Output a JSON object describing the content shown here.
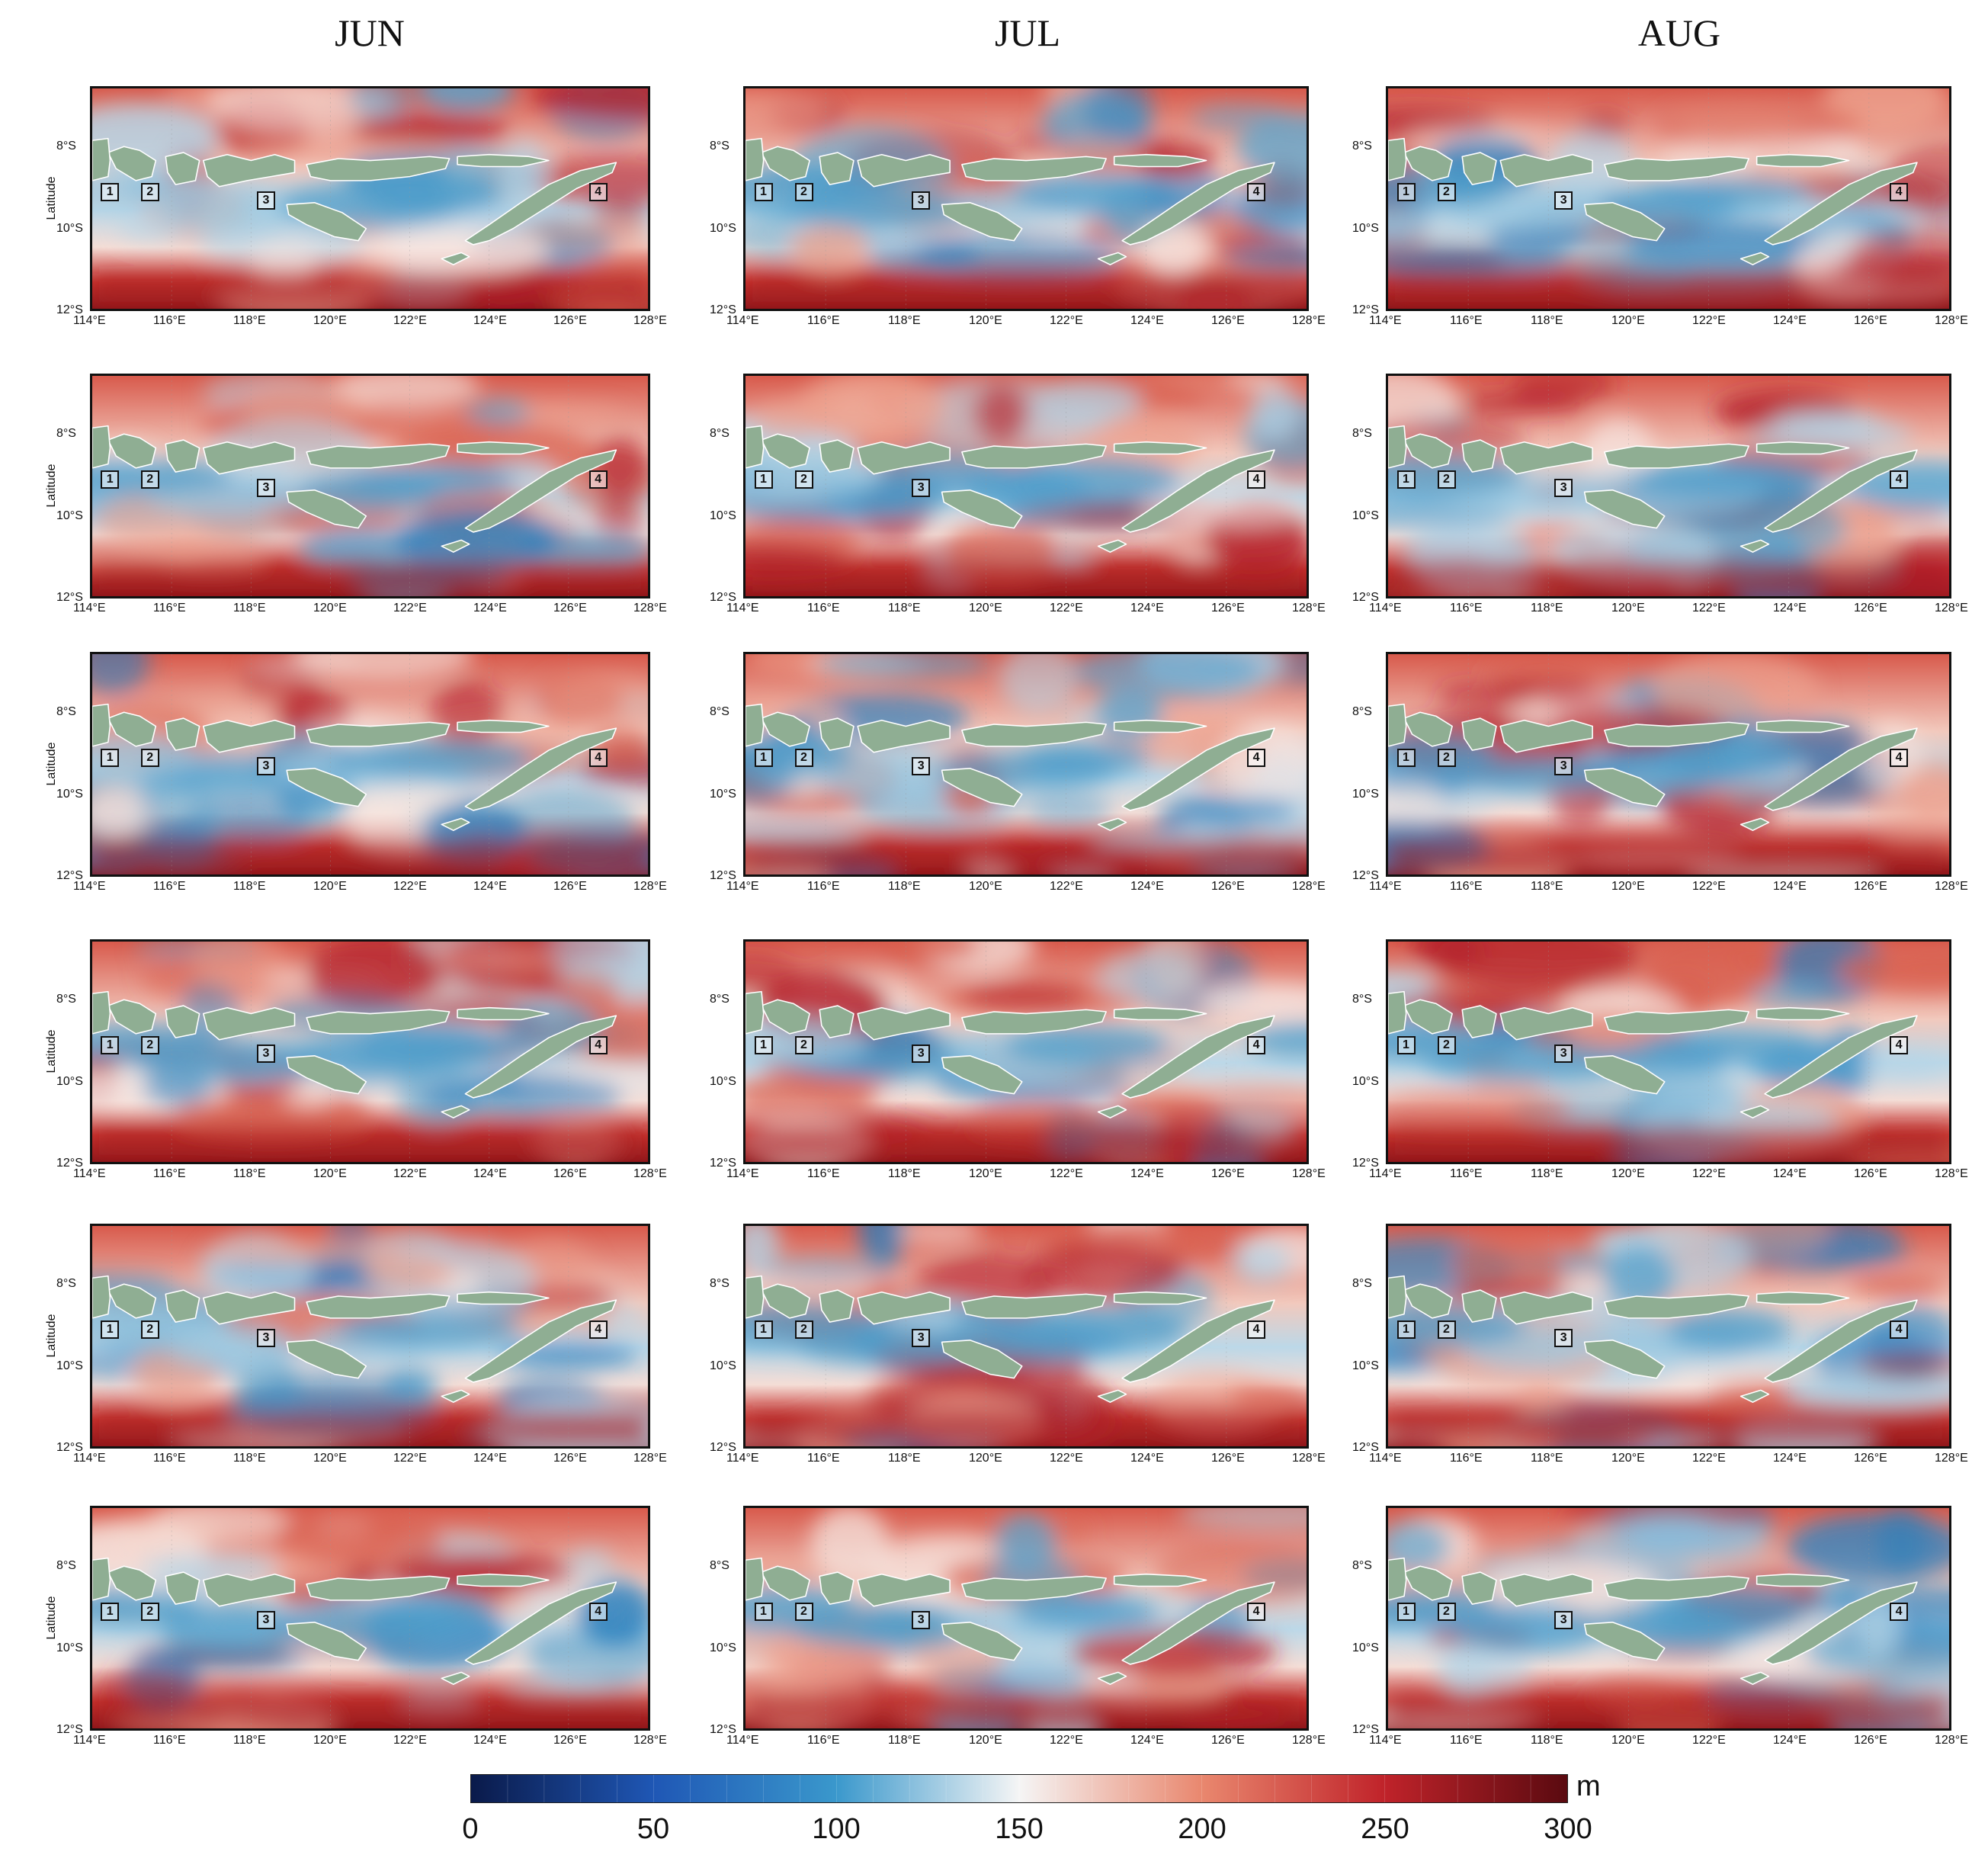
{
  "columns": [
    "JUN",
    "JUL",
    "AUG"
  ],
  "map": {
    "y_axis_label": "Latitude",
    "lat_ticks": [
      "8°S",
      "10°S",
      "12°S"
    ],
    "lon_ticks": [
      "114°E",
      "116°E",
      "118°E",
      "120°E",
      "122°E",
      "124°E",
      "126°E",
      "128°E"
    ],
    "lon_range": [
      114,
      128
    ],
    "lat_range": [
      -12,
      -6.5
    ],
    "location_markers": [
      "1",
      "2",
      "3",
      "4"
    ],
    "land_color": "#8fae93",
    "rows": 6
  },
  "colorbar": {
    "min": 0,
    "max": 300,
    "unit": "m",
    "labels": [
      "0",
      "50",
      "100",
      "150",
      "200",
      "250",
      "300"
    ],
    "colors": [
      "#0a1a4a",
      "#1f57b5",
      "#3a98cc",
      "#f5f5f5",
      "#e9876e",
      "#c0232a",
      "#5a0a10"
    ]
  }
}
